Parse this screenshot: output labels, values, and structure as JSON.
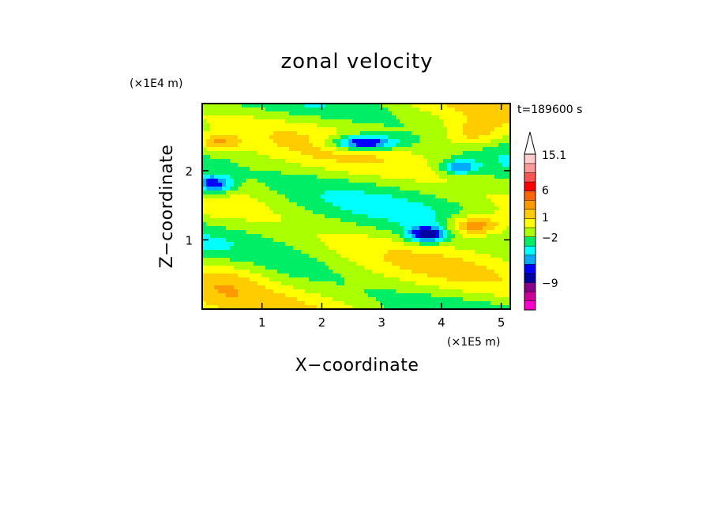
{
  "chart_data": {
    "type": "heatmap",
    "title": "zonal velocity",
    "xlabel": "X−coordinate",
    "ylabel": "Z−coordinate",
    "x_unit": "(×1E5 m)",
    "y_unit": "(×1E4 m)",
    "time_label": "t=189600 s",
    "xlim": [
      0,
      5.15
    ],
    "ylim": [
      0,
      2.97
    ],
    "x_ticks": [
      "1",
      "2",
      "3",
      "4",
      "5"
    ],
    "x_tick_values": [
      1,
      2,
      3,
      4,
      5
    ],
    "y_ticks": [
      "1",
      "2"
    ],
    "y_tick_values": [
      1,
      2
    ],
    "colorbar": {
      "max_label": "15.1",
      "labels": [
        "15.1",
        "6",
        "1",
        "−2",
        "−9"
      ],
      "colors": [
        "#ff00cc",
        "#cc0099",
        "#880088",
        "#0000a0",
        "#0000ff",
        "#00aaff",
        "#00ffff",
        "#00ee66",
        "#aaff00",
        "#ffff00",
        "#ffcc00",
        "#ff9900",
        "#ff6600",
        "#ff0000",
        "#ff5555",
        "#ff9999",
        "#ffcccc"
      ]
    }
  }
}
